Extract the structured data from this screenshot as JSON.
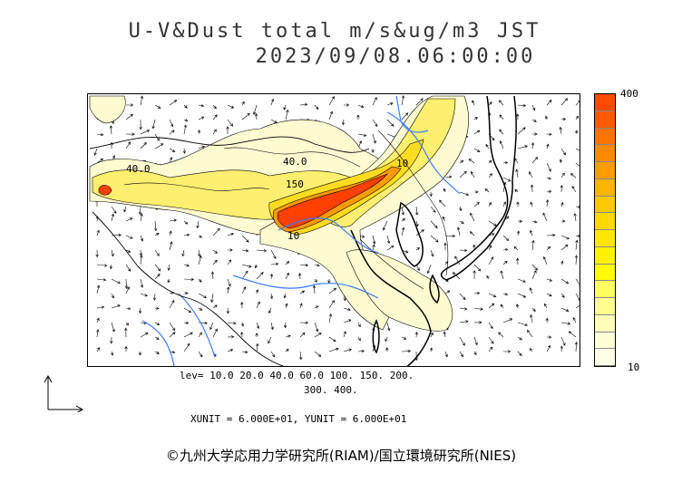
{
  "title": {
    "line1": "U-V&Dust total m/s&ug/m3 JST",
    "line2": "2023/09/08.06:00:00"
  },
  "colorbar": {
    "max_label": "400",
    "min_label": "10",
    "colors": [
      "#ffffe8",
      "#ffffd8",
      "#ffffb8",
      "#ffff90",
      "#ffff60",
      "#ffff00",
      "#fff200",
      "#ffe600",
      "#ffd900",
      "#ffc800",
      "#ffb400",
      "#ff9c00",
      "#ff8a00",
      "#ff7400",
      "#ff5a00",
      "#ff4a00"
    ]
  },
  "map": {
    "contour_labels": [
      "40.0",
      "40.0",
      "150",
      "10",
      "10"
    ],
    "land_color": "#ffffff",
    "river_color": "#3a7bff",
    "dust_colors": {
      "low": "#fffbd0",
      "mid": "#ffef70",
      "high": "#ffdc20",
      "very_high": "#ff9a00",
      "peak": "#ff4000"
    }
  },
  "levels": {
    "line1": "lev= 10.0 20.0 40.0 60.0 100. 150. 200.",
    "line2": "300. 400."
  },
  "units": "XUNIT = 6.000E+01, YUNIT = 6.000E+01",
  "credit": "©九州大学応用力学研究所(RIAM)/国立環境研究所(NIES)"
}
